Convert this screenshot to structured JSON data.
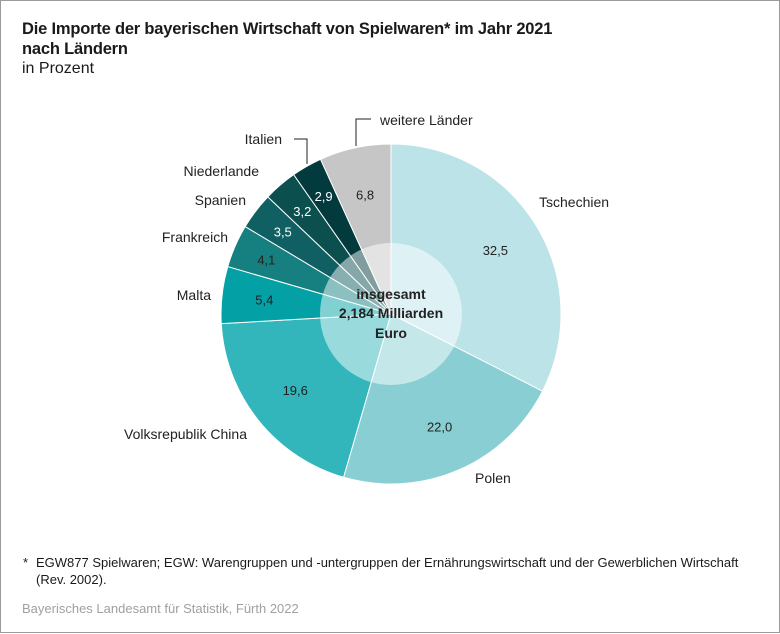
{
  "header": {
    "title_line1": "Die Importe der bayerischen Wirtschaft von Spielwaren* im Jahr 2021",
    "title_line2": "nach Ländern",
    "subtitle": "in Prozent"
  },
  "chart_data": {
    "type": "pie",
    "title": "Die Importe der bayerischen Wirtschaft von Spielwaren* im Jahr 2021 nach Ländern",
    "subtitle": "in Prozent",
    "unit": "%",
    "center_label": [
      "insgesamt",
      "2,184 Milliarden",
      "Euro"
    ],
    "start": "12 o'clock, clockwise",
    "slices": [
      {
        "name": "Tschechien",
        "value": 32.5,
        "value_label": "32,5",
        "color": "#bce3e8",
        "value_color": "#222222"
      },
      {
        "name": "Polen",
        "value": 22.0,
        "value_label": "22,0",
        "color": "#88ced3",
        "value_color": "#222222"
      },
      {
        "name": "Volksrepublik China",
        "value": 19.6,
        "value_label": "19,6",
        "color": "#33b6bb",
        "value_color": "#222222"
      },
      {
        "name": "Malta",
        "value": 5.4,
        "value_label": "5,4",
        "color": "#03a1a5",
        "value_color": "#222222"
      },
      {
        "name": "Frankreich",
        "value": 4.1,
        "value_label": "4,1",
        "color": "#15807f",
        "value_color": "#222222"
      },
      {
        "name": "Spanien",
        "value": 3.5,
        "value_label": "3,5",
        "color": "#0f5f63",
        "value_color": "#ffffff"
      },
      {
        "name": "Niederlande",
        "value": 3.2,
        "value_label": "3,2",
        "color": "#0b4f4e",
        "value_color": "#ffffff"
      },
      {
        "name": "Italien",
        "value": 2.9,
        "value_label": "2,9",
        "color": "#033a3e",
        "value_color": "#ffffff"
      },
      {
        "name": "weitere Länder",
        "value": 6.8,
        "value_label": "6,8",
        "color": "#c6c6c6",
        "value_color": "#222222"
      }
    ]
  },
  "footnote": {
    "marker": "*",
    "text": "EGW877 Spielwaren; EGW: Warengruppen und -untergruppen der Ernährungswirtschaft und der Gewerblichen Wirtschaft (Rev. 2002)."
  },
  "source": "Bayerisches Landesamt für Statistik, Fürth 2022"
}
